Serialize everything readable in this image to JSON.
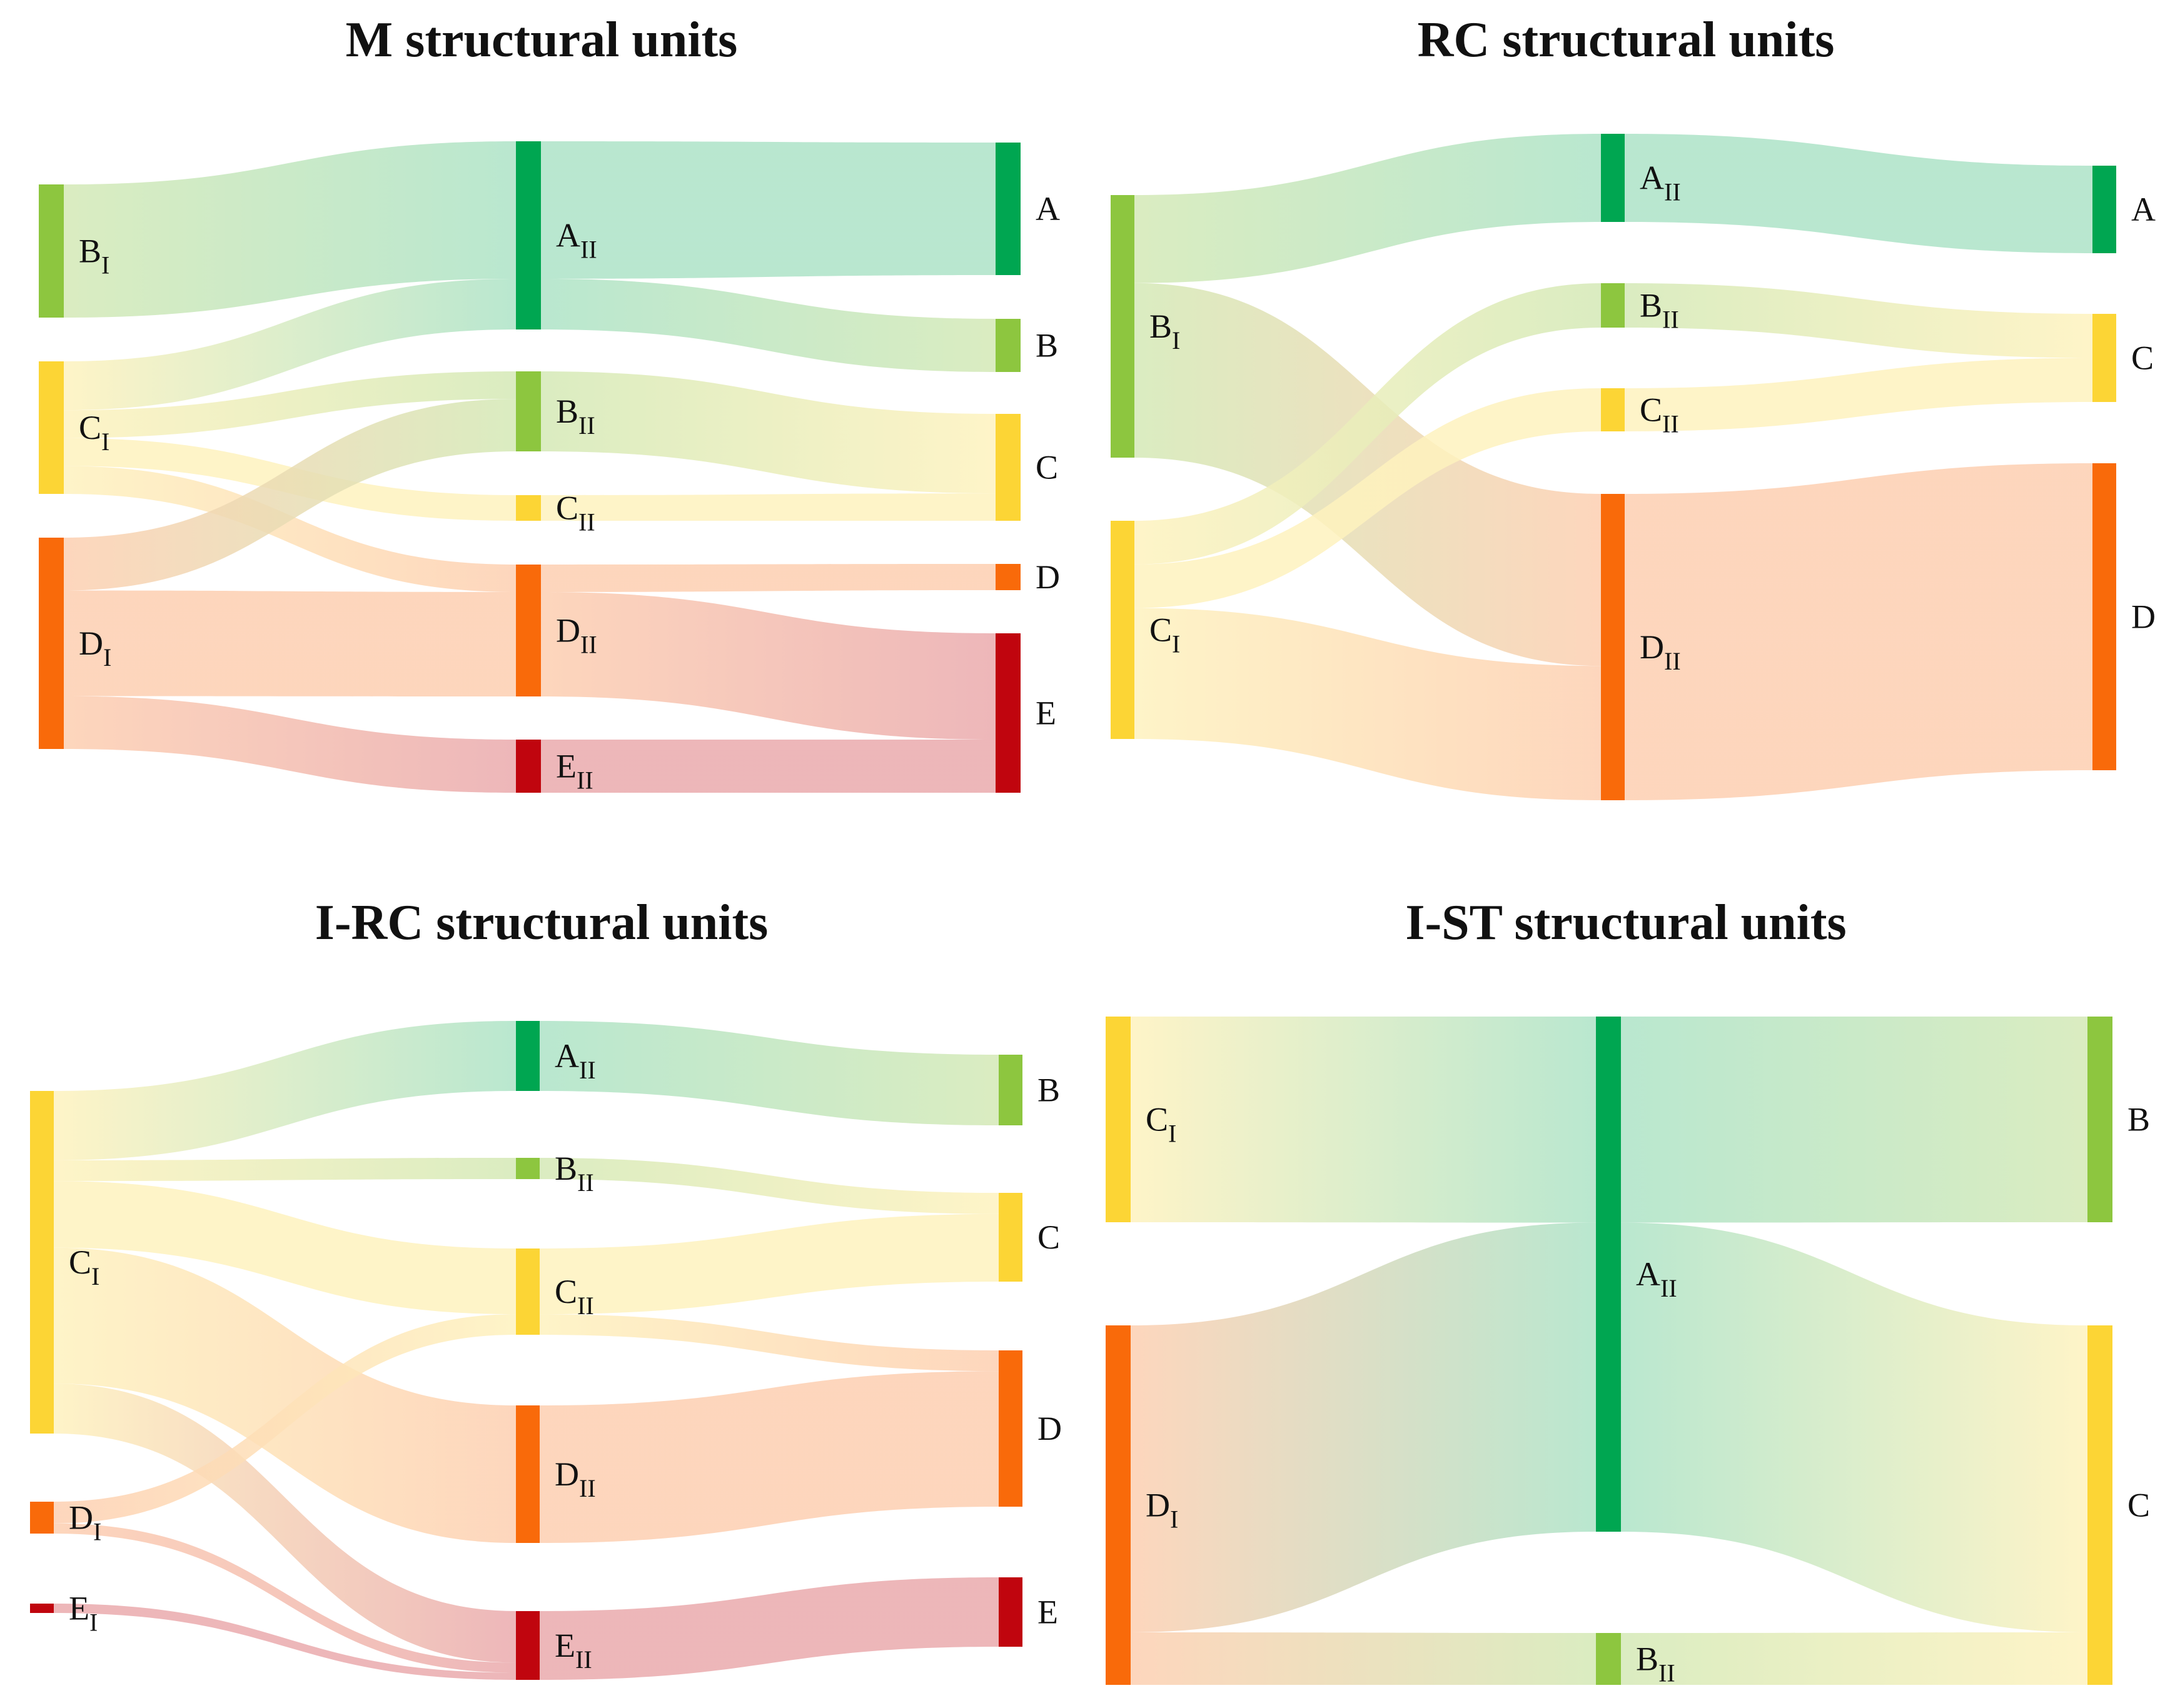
{
  "colors": {
    "A": "#00a651",
    "B": "#8dc63f",
    "C": "#fcd535",
    "D": "#f96a0a",
    "E": "#c0050e"
  },
  "chart_data": [
    {
      "type": "sankey",
      "title": "M structural units",
      "nodes": [
        {
          "id": "BI",
          "base": "B",
          "sub": "I",
          "cat": "B",
          "column": 0
        },
        {
          "id": "CI",
          "base": "C",
          "sub": "I",
          "cat": "C",
          "column": 0
        },
        {
          "id": "DI",
          "base": "D",
          "sub": "I",
          "cat": "D",
          "column": 0
        },
        {
          "id": "AII",
          "base": "A",
          "sub": "II",
          "cat": "A",
          "column": 1
        },
        {
          "id": "BII",
          "base": "B",
          "sub": "II",
          "cat": "B",
          "column": 1
        },
        {
          "id": "CII",
          "base": "C",
          "sub": "II",
          "cat": "C",
          "column": 1
        },
        {
          "id": "DII",
          "base": "D",
          "sub": "II",
          "cat": "D",
          "column": 1
        },
        {
          "id": "EII",
          "base": "E",
          "sub": "II",
          "cat": "E",
          "column": 1
        },
        {
          "id": "A",
          "base": "A",
          "sub": "",
          "cat": "A",
          "column": 2
        },
        {
          "id": "B",
          "base": "B",
          "sub": "",
          "cat": "B",
          "column": 2
        },
        {
          "id": "C",
          "base": "C",
          "sub": "",
          "cat": "C",
          "column": 2
        },
        {
          "id": "D",
          "base": "D",
          "sub": "",
          "cat": "D",
          "column": 2
        },
        {
          "id": "E",
          "base": "E",
          "sub": "",
          "cat": "E",
          "column": 2
        }
      ],
      "links": [
        {
          "source": "BI",
          "target": "AII",
          "value": 9.5
        },
        {
          "source": "CI",
          "target": "AII",
          "value": 3.5
        },
        {
          "source": "CI",
          "target": "BII",
          "value": 2
        },
        {
          "source": "CI",
          "target": "CII",
          "value": 2
        },
        {
          "source": "CI",
          "target": "DII",
          "value": 2
        },
        {
          "source": "DI",
          "target": "BII",
          "value": 3.8
        },
        {
          "source": "DI",
          "target": "DII",
          "value": 7.6
        },
        {
          "source": "DI",
          "target": "EII",
          "value": 3.8
        },
        {
          "source": "AII",
          "target": "A",
          "value": 9.5
        },
        {
          "source": "AII",
          "target": "B",
          "value": 3.5
        },
        {
          "source": "BII",
          "target": "C",
          "value": 5.8
        },
        {
          "source": "CII",
          "target": "C",
          "value": 2
        },
        {
          "source": "DII",
          "target": "D",
          "value": 2
        },
        {
          "source": "DII",
          "target": "E",
          "value": 7.6
        },
        {
          "source": "EII",
          "target": "E",
          "value": 3.8
        }
      ]
    },
    {
      "type": "sankey",
      "title": "RC structural units",
      "nodes": [
        {
          "id": "BI",
          "base": "B",
          "sub": "I",
          "cat": "B",
          "column": 0
        },
        {
          "id": "CI",
          "base": "C",
          "sub": "I",
          "cat": "C",
          "column": 0
        },
        {
          "id": "AII",
          "base": "A",
          "sub": "II",
          "cat": "A",
          "column": 1
        },
        {
          "id": "BII",
          "base": "B",
          "sub": "II",
          "cat": "B",
          "column": 1
        },
        {
          "id": "CII",
          "base": "C",
          "sub": "II",
          "cat": "C",
          "column": 1
        },
        {
          "id": "DII",
          "base": "D",
          "sub": "II",
          "cat": "D",
          "column": 1
        },
        {
          "id": "A",
          "base": "A",
          "sub": "",
          "cat": "A",
          "column": 2
        },
        {
          "id": "C",
          "base": "C",
          "sub": "",
          "cat": "C",
          "column": 2
        },
        {
          "id": "D",
          "base": "D",
          "sub": "",
          "cat": "D",
          "column": 2
        }
      ],
      "links": [
        {
          "source": "BI",
          "target": "AII",
          "value": 6.2
        },
        {
          "source": "BI",
          "target": "DII",
          "value": 12.3
        },
        {
          "source": "CI",
          "target": "BII",
          "value": 3.2
        },
        {
          "source": "CI",
          "target": "CII",
          "value": 3.2
        },
        {
          "source": "CI",
          "target": "DII",
          "value": 9.6
        },
        {
          "source": "AII",
          "target": "A",
          "value": 6.2
        },
        {
          "source": "BII",
          "target": "C",
          "value": 3.2
        },
        {
          "source": "CII",
          "target": "C",
          "value": 3.2
        },
        {
          "source": "DII",
          "target": "D",
          "value": 21.9
        }
      ]
    },
    {
      "type": "sankey",
      "title": "I-RC structural units",
      "nodes": [
        {
          "id": "CI",
          "base": "C",
          "sub": "I",
          "cat": "C",
          "column": 0
        },
        {
          "id": "DI",
          "base": "D",
          "sub": "I",
          "cat": "D",
          "column": 0
        },
        {
          "id": "EI",
          "base": "E",
          "sub": "I",
          "cat": "E",
          "column": 0
        },
        {
          "id": "AII",
          "base": "A",
          "sub": "II",
          "cat": "A",
          "column": 1
        },
        {
          "id": "BII",
          "base": "B",
          "sub": "II",
          "cat": "B",
          "column": 1
        },
        {
          "id": "CII",
          "base": "C",
          "sub": "II",
          "cat": "C",
          "column": 1
        },
        {
          "id": "DII",
          "base": "D",
          "sub": "II",
          "cat": "D",
          "column": 1
        },
        {
          "id": "EII",
          "base": "E",
          "sub": "II",
          "cat": "E",
          "column": 1
        },
        {
          "id": "B",
          "base": "B",
          "sub": "",
          "cat": "B",
          "column": 2
        },
        {
          "id": "C",
          "base": "C",
          "sub": "",
          "cat": "C",
          "column": 2
        },
        {
          "id": "D",
          "base": "D",
          "sub": "",
          "cat": "D",
          "column": 2
        },
        {
          "id": "E",
          "base": "E",
          "sub": "",
          "cat": "E",
          "column": 2
        }
      ],
      "links": [
        {
          "source": "CI",
          "target": "AII",
          "value": 5
        },
        {
          "source": "CI",
          "target": "BII",
          "value": 1.5
        },
        {
          "source": "CI",
          "target": "CII",
          "value": 4.8
        },
        {
          "source": "CI",
          "target": "DII",
          "value": 9.8
        },
        {
          "source": "CI",
          "target": "EII",
          "value": 3.6
        },
        {
          "source": "DI",
          "target": "CII",
          "value": 1.5
        },
        {
          "source": "DI",
          "target": "EII",
          "value": 0.7
        },
        {
          "source": "EI",
          "target": "EII",
          "value": 0.5
        },
        {
          "source": "AII",
          "target": "B",
          "value": 5
        },
        {
          "source": "BII",
          "target": "C",
          "value": 1.5
        },
        {
          "source": "CII",
          "target": "C",
          "value": 4.8
        },
        {
          "source": "CII",
          "target": "D",
          "value": 1.5
        },
        {
          "source": "DII",
          "target": "D",
          "value": 9.8
        },
        {
          "source": "EII",
          "target": "E",
          "value": 4.8
        }
      ]
    },
    {
      "type": "sankey",
      "title": "I-ST structural units",
      "nodes": [
        {
          "id": "CI",
          "base": "C",
          "sub": "I",
          "cat": "C",
          "column": 0
        },
        {
          "id": "DI",
          "base": "D",
          "sub": "I",
          "cat": "D",
          "column": 0
        },
        {
          "id": "AII",
          "base": "A",
          "sub": "II",
          "cat": "A",
          "column": 1
        },
        {
          "id": "BII",
          "base": "B",
          "sub": "II",
          "cat": "B",
          "column": 1
        },
        {
          "id": "B",
          "base": "B",
          "sub": "",
          "cat": "B",
          "column": 2
        },
        {
          "id": "C",
          "base": "C",
          "sub": "",
          "cat": "C",
          "column": 2
        }
      ],
      "links": [
        {
          "source": "CI",
          "target": "AII",
          "value": 14.8
        },
        {
          "source": "DI",
          "target": "AII",
          "value": 22.2
        },
        {
          "source": "DI",
          "target": "BII",
          "value": 3.8
        },
        {
          "source": "AII",
          "target": "B",
          "value": 14.8
        },
        {
          "source": "AII",
          "target": "C",
          "value": 22.2
        },
        {
          "source": "BII",
          "target": "C",
          "value": 3.8
        }
      ]
    }
  ]
}
